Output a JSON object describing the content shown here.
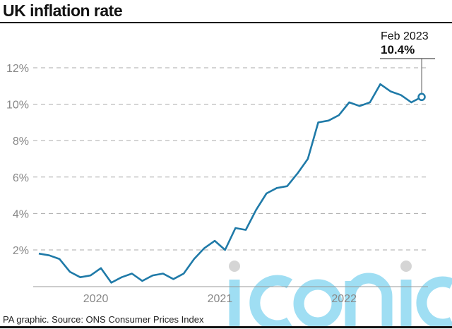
{
  "title": "UK inflation rate",
  "source": "PA graphic. Source: ONS Consumer Prices Index",
  "watermark": "iconic",
  "chart_data": {
    "type": "line",
    "title": "UK inflation rate",
    "xlabel": "",
    "ylabel": "",
    "ylim": [
      0,
      12.5
    ],
    "yticks": [
      2,
      4,
      6,
      8,
      10,
      12
    ],
    "ytick_labels": [
      "2%",
      "4%",
      "6%",
      "8%",
      "10%",
      "12%"
    ],
    "xtick_labels": [
      "2020",
      "2021",
      "2022"
    ],
    "grid": "horizontal dashed",
    "line_color": "#1f7aa8",
    "x": [
      "2020-01",
      "2020-02",
      "2020-03",
      "2020-04",
      "2020-05",
      "2020-06",
      "2020-07",
      "2020-08",
      "2020-09",
      "2020-10",
      "2020-11",
      "2020-12",
      "2021-01",
      "2021-02",
      "2021-03",
      "2021-04",
      "2021-05",
      "2021-06",
      "2021-07",
      "2021-08",
      "2021-09",
      "2021-10",
      "2021-11",
      "2021-12",
      "2022-01",
      "2022-02",
      "2022-03",
      "2022-04",
      "2022-05",
      "2022-06",
      "2022-07",
      "2022-08",
      "2022-09",
      "2022-10",
      "2022-11",
      "2022-12",
      "2023-01",
      "2023-02"
    ],
    "values": [
      1.8,
      1.7,
      1.5,
      0.8,
      0.5,
      0.6,
      1.0,
      0.2,
      0.5,
      0.7,
      0.3,
      0.6,
      0.7,
      0.4,
      0.7,
      1.5,
      2.1,
      2.5,
      2.0,
      3.2,
      3.1,
      4.2,
      5.1,
      5.4,
      5.5,
      6.2,
      7.0,
      9.0,
      9.1,
      9.4,
      10.1,
      9.9,
      10.1,
      11.1,
      10.7,
      10.5,
      10.1,
      10.4
    ],
    "annotation": {
      "label": "Feb 2023",
      "value": "10.4%"
    }
  }
}
